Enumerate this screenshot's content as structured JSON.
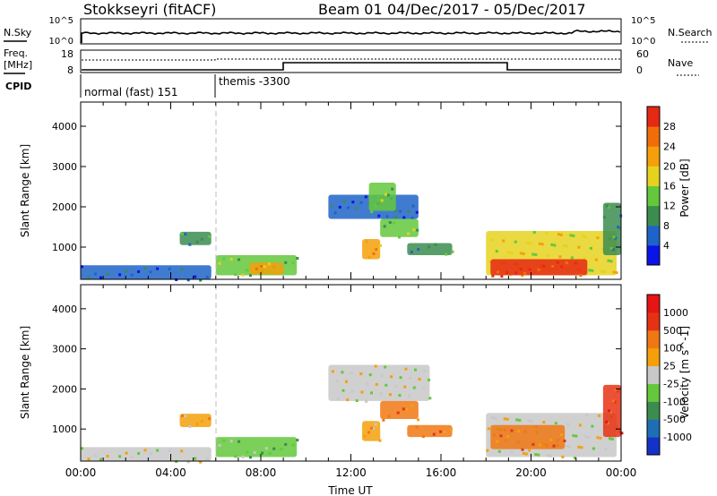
{
  "header": {
    "station": "Stokkseyri (fitACF)",
    "beam": "Beam 01",
    "date_range": "04/Dec/2017 - 05/Dec/2017"
  },
  "noise_panel": {
    "left_label": "N.Sky",
    "right_label": "N.Search",
    "left_ticks": [
      "10^5",
      "10^0"
    ],
    "right_ticks": [
      "10^5",
      "10^0"
    ]
  },
  "freq_panel": {
    "left_label_1": "Freq.",
    "left_label_2": "[MHz]",
    "right_label": "Nave",
    "left_ticks": [
      "18",
      "8"
    ],
    "right_ticks": [
      "60",
      "0"
    ]
  },
  "cpid_panel": {
    "label": "CPID",
    "modes": [
      {
        "name": "normal (fast) 151",
        "start_hour": 0
      },
      {
        "name": "themis -3300",
        "start_hour": 6
      }
    ]
  },
  "chart_data": [
    {
      "type": "heatmap",
      "name": "power",
      "ylabel": "Slant Range [km]",
      "xlabel": "",
      "xlim": [
        0,
        24
      ],
      "ylim": [
        200,
        4600
      ],
      "yticks": [
        1000,
        2000,
        3000,
        4000
      ],
      "colorbar": {
        "label": "Power [dB]",
        "ticks": [
          "4",
          "8",
          "12",
          "16",
          "20",
          "24",
          "28"
        ],
        "colors": [
          "#0a14e6",
          "#1e64c8",
          "#3c8c50",
          "#64c83c",
          "#e6d21e",
          "#f5a00a",
          "#f06e0a",
          "#e62814"
        ]
      },
      "regions": [
        {
          "x0": 0.0,
          "x1": 5.8,
          "y0": 200,
          "y1": 550,
          "level": 1
        },
        {
          "x0": 4.4,
          "x1": 5.8,
          "y0": 1050,
          "y1": 1380,
          "level": 2
        },
        {
          "x0": 6.0,
          "x1": 9.6,
          "y0": 300,
          "y1": 800,
          "level": 3
        },
        {
          "x0": 7.5,
          "x1": 9.0,
          "y0": 320,
          "y1": 620,
          "level": 5
        },
        {
          "x0": 11.0,
          "x1": 15.0,
          "y0": 1700,
          "y1": 2300,
          "level": 1
        },
        {
          "x0": 12.8,
          "x1": 14.0,
          "y0": 1900,
          "y1": 2600,
          "level": 3
        },
        {
          "x0": 12.5,
          "x1": 13.3,
          "y0": 700,
          "y1": 1200,
          "level": 5
        },
        {
          "x0": 13.3,
          "x1": 15.0,
          "y0": 1250,
          "y1": 1700,
          "level": 3
        },
        {
          "x0": 14.5,
          "x1": 16.5,
          "y0": 800,
          "y1": 1100,
          "level": 2
        },
        {
          "x0": 18.0,
          "x1": 23.8,
          "y0": 300,
          "y1": 1400,
          "level": 4
        },
        {
          "x0": 18.2,
          "x1": 22.5,
          "y0": 300,
          "y1": 700,
          "level": 7
        },
        {
          "x0": 23.2,
          "x1": 24.0,
          "y0": 800,
          "y1": 2100,
          "level": 2
        }
      ]
    },
    {
      "type": "heatmap",
      "name": "velocity",
      "ylabel": "Slant Range [km]",
      "xlabel": "Time UT",
      "xlim": [
        0,
        24
      ],
      "ylim": [
        200,
        4600
      ],
      "xticks": [
        "00:00",
        "04:00",
        "08:00",
        "12:00",
        "16:00",
        "20:00",
        "00:00"
      ],
      "yticks": [
        1000,
        2000,
        3000,
        4000
      ],
      "colorbar": {
        "label": "Velocity [m s^-1]",
        "ticks": [
          "1000",
          "500",
          "100",
          "25",
          "-25",
          "-100",
          "-500",
          "-1000"
        ],
        "colors": [
          "#1432c8",
          "#1e6eb4",
          "#3c8c50",
          "#64c83c",
          "#c8c8c8",
          "#f5a00a",
          "#f07814",
          "#e63214",
          "#e61414"
        ]
      },
      "regions": [
        {
          "x0": 0.0,
          "x1": 5.8,
          "y0": 200,
          "y1": 550,
          "level": 4
        },
        {
          "x0": 4.4,
          "x1": 5.8,
          "y0": 1050,
          "y1": 1380,
          "level": 5
        },
        {
          "x0": 6.0,
          "x1": 9.6,
          "y0": 300,
          "y1": 800,
          "level": 3
        },
        {
          "x0": 11.0,
          "x1": 15.5,
          "y0": 1700,
          "y1": 2600,
          "level": 4
        },
        {
          "x0": 12.5,
          "x1": 13.3,
          "y0": 700,
          "y1": 1200,
          "level": 5
        },
        {
          "x0": 13.3,
          "x1": 15.0,
          "y0": 1250,
          "y1": 1700,
          "level": 6
        },
        {
          "x0": 14.5,
          "x1": 16.5,
          "y0": 800,
          "y1": 1100,
          "level": 6
        },
        {
          "x0": 18.0,
          "x1": 23.8,
          "y0": 300,
          "y1": 1400,
          "level": 4
        },
        {
          "x0": 18.2,
          "x1": 21.5,
          "y0": 500,
          "y1": 1100,
          "level": 6
        },
        {
          "x0": 23.2,
          "x1": 24.0,
          "y0": 800,
          "y1": 2100,
          "level": 7
        }
      ]
    }
  ]
}
